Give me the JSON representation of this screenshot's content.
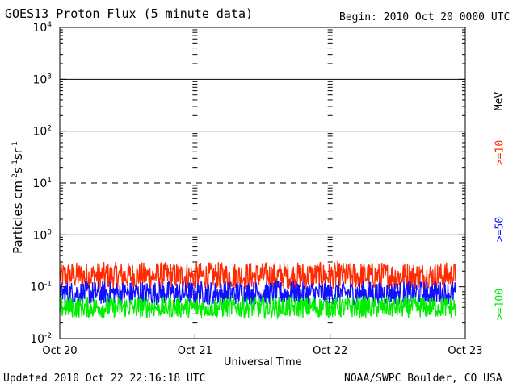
{
  "header": {
    "title": "GOES13 Proton Flux (5 minute data)",
    "begin": "Begin: 2010 Oct 20 0000 UTC"
  },
  "footer": {
    "updated": "Updated 2010 Oct 22 22:16:18 UTC",
    "credit": "NOAA/SWPC Boulder, CO USA"
  },
  "colors": {
    "ge10": "#ff2a00",
    "ge50": "#1010ff",
    "ge100": "#00ee00",
    "frame": "#000000"
  },
  "chart_data": {
    "type": "line",
    "title": "GOES13 Proton Flux (5 minute data)",
    "xlabel": "Universal Time",
    "ylabel": "Particles cm⁻²s⁻¹sr⁻¹",
    "ylabel_parts": [
      "Particles cm",
      "-2",
      "s",
      "-1",
      "sr",
      "-1"
    ],
    "yscale": "log",
    "ylim": [
      0.01,
      10000
    ],
    "xlim": [
      "2010-10-20 00:00",
      "2010-10-23 00:00"
    ],
    "xticks": [
      "Oct 20",
      "Oct 21",
      "Oct 22",
      "Oct 23"
    ],
    "yticks": [
      {
        "base": "10",
        "exp": "-2",
        "value": 0.01
      },
      {
        "base": "10",
        "exp": "-1",
        "value": 0.1
      },
      {
        "base": "10",
        "exp": "0",
        "value": 1
      },
      {
        "base": "10",
        "exp": "1",
        "value": 10
      },
      {
        "base": "10",
        "exp": "2",
        "value": 100
      },
      {
        "base": "10",
        "exp": "3",
        "value": 1000
      },
      {
        "base": "10",
        "exp": "4",
        "value": 10000
      }
    ],
    "reference_lines": [
      {
        "value": 10,
        "style": "dashed"
      },
      {
        "value": 1,
        "style": "solid"
      },
      {
        "value": 100,
        "style": "solid"
      },
      {
        "value": 1000,
        "style": "solid"
      }
    ],
    "unit": "MeV",
    "series": [
      {
        "name": ">=10",
        "color": "#ff2a00",
        "typical": 0.16,
        "min": 0.09,
        "max": 0.3,
        "x_end": "2010-10-22 22:15"
      },
      {
        "name": ">=50",
        "color": "#1010ff",
        "typical": 0.075,
        "min": 0.045,
        "max": 0.13,
        "x_end": "2010-10-22 22:15"
      },
      {
        "name": ">=100",
        "color": "#00ee00",
        "typical": 0.04,
        "min": 0.025,
        "max": 0.065,
        "x_end": "2010-10-22 22:15"
      }
    ]
  }
}
